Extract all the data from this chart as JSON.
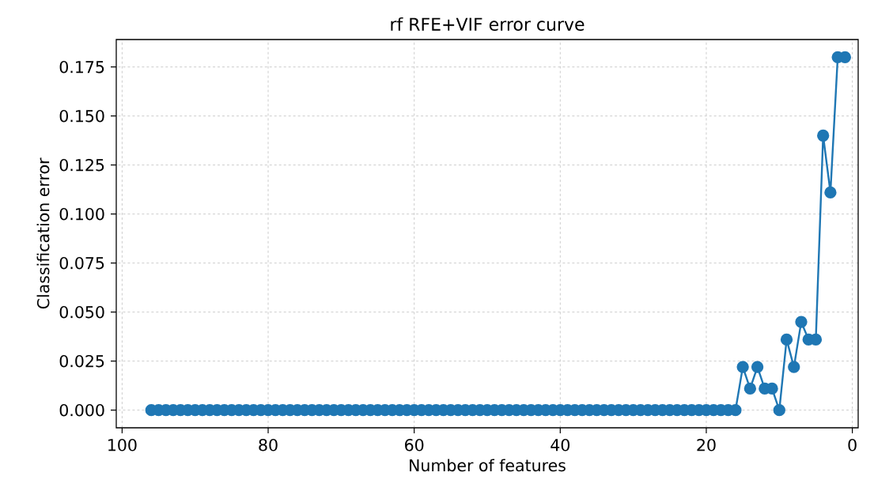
{
  "chart_data": {
    "type": "line",
    "title": "rf RFE+VIF error curve",
    "xlabel": "Number of features",
    "ylabel": "Classification error",
    "x": [
      96,
      95,
      94,
      93,
      92,
      91,
      90,
      89,
      88,
      87,
      86,
      85,
      84,
      83,
      82,
      81,
      80,
      79,
      78,
      77,
      76,
      75,
      74,
      73,
      72,
      71,
      70,
      69,
      68,
      67,
      66,
      65,
      64,
      63,
      62,
      61,
      60,
      59,
      58,
      57,
      56,
      55,
      54,
      53,
      52,
      51,
      50,
      49,
      48,
      47,
      46,
      45,
      44,
      43,
      42,
      41,
      40,
      39,
      38,
      37,
      36,
      35,
      34,
      33,
      32,
      31,
      30,
      29,
      28,
      27,
      26,
      25,
      24,
      23,
      22,
      21,
      20,
      19,
      18,
      17,
      16,
      15,
      14,
      13,
      12,
      11,
      10,
      9,
      8,
      7,
      6,
      5,
      4,
      3,
      2,
      1
    ],
    "series": [
      {
        "color": "#1f77b4",
        "values": [
          0,
          0,
          0,
          0,
          0,
          0,
          0,
          0,
          0,
          0,
          0,
          0,
          0,
          0,
          0,
          0,
          0,
          0,
          0,
          0,
          0,
          0,
          0,
          0,
          0,
          0,
          0,
          0,
          0,
          0,
          0,
          0,
          0,
          0,
          0,
          0,
          0,
          0,
          0,
          0,
          0,
          0,
          0,
          0,
          0,
          0,
          0,
          0,
          0,
          0,
          0,
          0,
          0,
          0,
          0,
          0,
          0,
          0,
          0,
          0,
          0,
          0,
          0,
          0,
          0,
          0,
          0,
          0,
          0,
          0,
          0,
          0,
          0,
          0,
          0,
          0,
          0,
          0,
          0,
          0,
          0,
          0.022,
          0.011,
          0.022,
          0.011,
          0.011,
          0,
          0.036,
          0.022,
          0.045,
          0.036,
          0.036,
          0.14,
          0.111,
          0.18,
          0.18
        ]
      }
    ],
    "xlim": [
      100.8,
      -0.8
    ],
    "ylim": [
      -0.009,
      0.189
    ],
    "xticks": [
      100,
      80,
      60,
      40,
      20,
      0
    ],
    "yticks": [
      {
        "value": 0,
        "label": "0.000"
      },
      {
        "value": 0.025,
        "label": "0.025"
      },
      {
        "value": 0.05,
        "label": "0.050"
      },
      {
        "value": 0.075,
        "label": "0.075"
      },
      {
        "value": 0.1,
        "label": "0.100"
      },
      {
        "value": 0.125,
        "label": "0.125"
      },
      {
        "value": 0.15,
        "label": "0.150"
      },
      {
        "value": 0.175,
        "label": "0.175"
      }
    ],
    "grid": true,
    "marker": "circle",
    "line_style": "solid"
  }
}
